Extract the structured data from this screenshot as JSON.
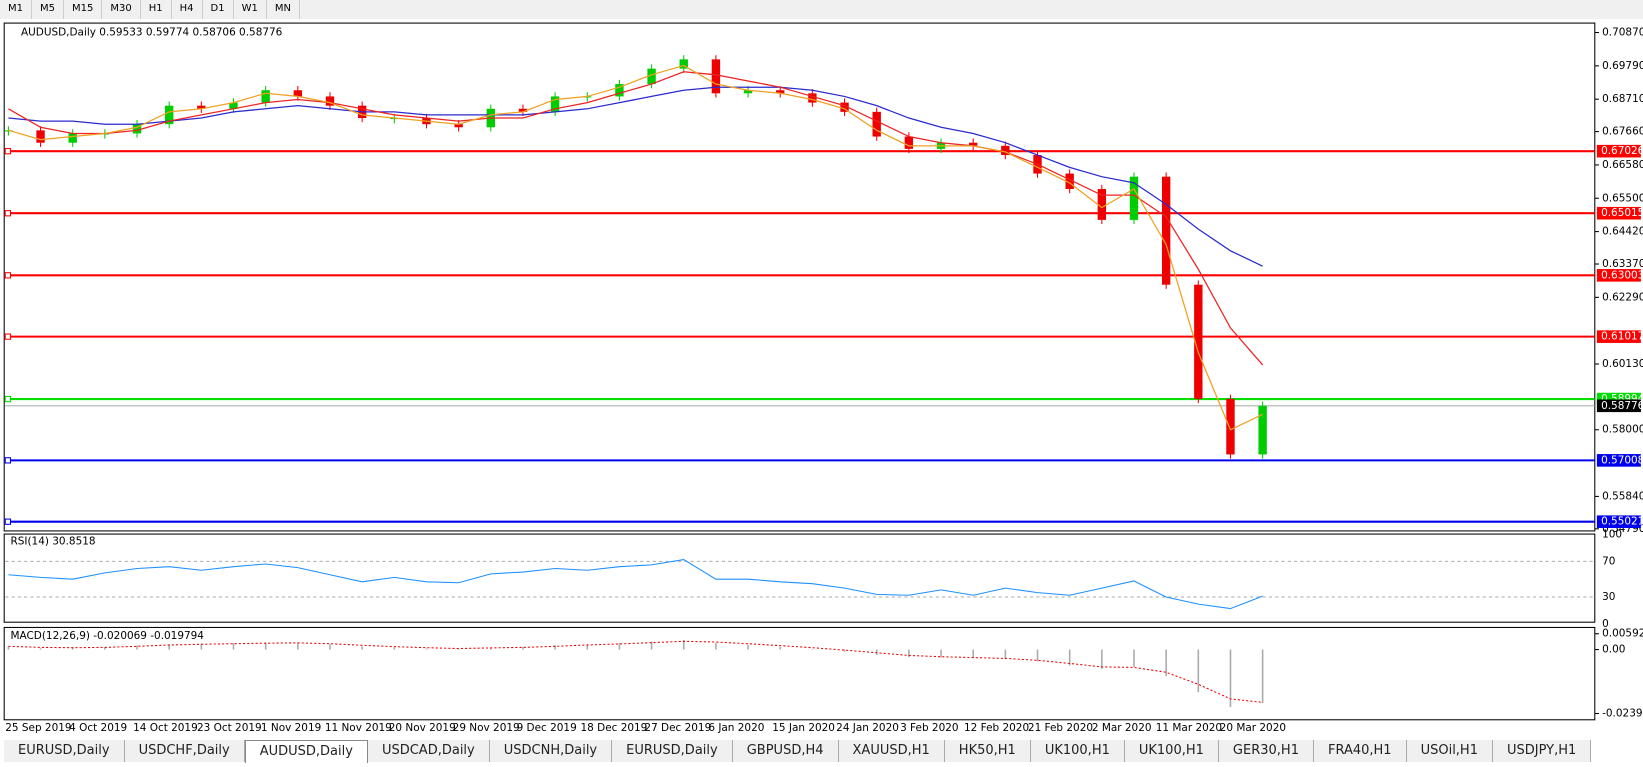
{
  "toolbar": [
    "M1",
    "M5",
    "M15",
    "M30",
    "H1",
    "H4",
    "D1",
    "W1",
    "MN"
  ],
  "chart": {
    "header": "AUDUSD,Daily  0.59533 0.59774 0.58706 0.58776",
    "ylim": [
      0.5479,
      0.7087
    ],
    "yticks": [
      {
        "value": 0.7087,
        "label": "0.70870"
      },
      {
        "value": 0.6979,
        "label": "0.69790"
      },
      {
        "value": 0.6871,
        "label": "0.68710"
      },
      {
        "value": 0.6766,
        "label": "0.67660"
      },
      {
        "value": 0.6658,
        "label": "0.66580"
      },
      {
        "value": 0.655,
        "label": "0.65500"
      },
      {
        "value": 0.6442,
        "label": "0.64420"
      },
      {
        "value": 0.6337,
        "label": "0.63370"
      },
      {
        "value": 0.6229,
        "label": "0.62290"
      },
      {
        "value": 0.6013,
        "label": "0.60130"
      },
      {
        "value": 0.58,
        "label": "0.58000"
      },
      {
        "value": 0.5584,
        "label": "0.55840"
      },
      {
        "value": 0.5479,
        "label": "0.54790"
      }
    ],
    "levels": [
      {
        "value": 0.67026,
        "color": "#ff0000"
      },
      {
        "value": 0.65015,
        "color": "#ff0000"
      },
      {
        "value": 0.63003,
        "color": "#ff0000"
      },
      {
        "value": 0.61017,
        "color": "#ff0000"
      },
      {
        "value": 0.58994,
        "color": "#00dd00"
      },
      {
        "value": 0.57008,
        "color": "#0000ee"
      },
      {
        "value": 0.55021,
        "color": "#0000ee"
      }
    ],
    "current_price": 0.58776,
    "closes": [
      0.677,
      0.673,
      0.676,
      0.676,
      0.679,
      0.685,
      0.684,
      0.686,
      0.69,
      0.688,
      0.685,
      0.681,
      0.681,
      0.679,
      0.678,
      0.684,
      0.683,
      0.688,
      0.688,
      0.692,
      0.697,
      0.7,
      0.689,
      0.69,
      0.689,
      0.686,
      0.683,
      0.675,
      0.671,
      0.673,
      0.672,
      0.669,
      0.663,
      0.658,
      0.648,
      0.662,
      0.627,
      0.59,
      0.572,
      0.58776
    ],
    "moving_averages": [
      {
        "color": "#2a2ad0",
        "values": [
          0.681,
          0.68,
          0.68,
          0.679,
          0.679,
          0.68,
          0.681,
          0.683,
          0.684,
          0.685,
          0.684,
          0.683,
          0.683,
          0.682,
          0.682,
          0.682,
          0.682,
          0.683,
          0.684,
          0.686,
          0.688,
          0.69,
          0.691,
          0.691,
          0.691,
          0.69,
          0.688,
          0.685,
          0.681,
          0.678,
          0.676,
          0.673,
          0.669,
          0.665,
          0.662,
          0.66,
          0.653,
          0.645,
          0.638,
          0.633
        ]
      },
      {
        "color": "#ee2222",
        "values": [
          0.684,
          0.678,
          0.676,
          0.676,
          0.677,
          0.68,
          0.682,
          0.684,
          0.686,
          0.687,
          0.686,
          0.684,
          0.682,
          0.681,
          0.68,
          0.681,
          0.681,
          0.684,
          0.686,
          0.689,
          0.692,
          0.696,
          0.695,
          0.693,
          0.691,
          0.688,
          0.685,
          0.68,
          0.675,
          0.673,
          0.672,
          0.67,
          0.666,
          0.661,
          0.656,
          0.656,
          0.649,
          0.632,
          0.613,
          0.601
        ]
      },
      {
        "color": "#f0a020",
        "values": [
          0.677,
          0.674,
          0.675,
          0.676,
          0.678,
          0.683,
          0.684,
          0.686,
          0.689,
          0.688,
          0.686,
          0.682,
          0.681,
          0.68,
          0.679,
          0.682,
          0.683,
          0.687,
          0.688,
          0.691,
          0.695,
          0.698,
          0.692,
          0.69,
          0.689,
          0.687,
          0.684,
          0.677,
          0.672,
          0.672,
          0.672,
          0.67,
          0.665,
          0.66,
          0.652,
          0.658,
          0.64,
          0.605,
          0.58,
          0.585
        ]
      }
    ],
    "dates": [
      "25 Sep 2019",
      "4 Oct 2019",
      "14 Oct 2019",
      "23 Oct 2019",
      "1 Nov 2019",
      "11 Nov 2019",
      "20 Nov 2019",
      "29 Nov 2019",
      "9 Dec 2019",
      "18 Dec 2019",
      "27 Dec 2019",
      "6 Jan 2020",
      "15 Jan 2020",
      "24 Jan 2020",
      "3 Feb 2020",
      "12 Feb 2020",
      "21 Feb 2020",
      "2 Mar 2020",
      "11 Mar 2020",
      "20 Mar 2020"
    ]
  },
  "rsi": {
    "label": "RSI(14) 30.8518",
    "ylim": [
      0,
      100
    ],
    "yticks": [
      100,
      70,
      30,
      0
    ],
    "values": [
      55,
      52,
      50,
      57,
      62,
      64,
      60,
      64,
      67,
      63,
      55,
      47,
      52,
      47,
      46,
      56,
      58,
      62,
      60,
      64,
      66,
      72,
      50,
      50,
      47,
      45,
      40,
      33,
      32,
      38,
      32,
      40,
      35,
      32,
      40,
      48,
      30,
      22,
      17,
      31
    ]
  },
  "macd": {
    "label": "MACD(12,26,9) -0.020069 -0.019794",
    "ylim": [
      -0.023944,
      0.005923
    ],
    "yticks": [
      0.005923,
      {
        "value": 0,
        "label": "0.00"
      },
      -0.023944
    ],
    "histogram": [
      0.001,
      0.0005,
      0.0008,
      0.001,
      0.0015,
      0.002,
      0.0022,
      0.0024,
      0.0026,
      0.0025,
      0.002,
      0.0012,
      0.0008,
      0.0004,
      0.0002,
      0.0008,
      0.001,
      0.0016,
      0.002,
      0.0024,
      0.003,
      0.0035,
      0.0025,
      0.0018,
      0.001,
      0.0002,
      -0.0008,
      -0.002,
      -0.0028,
      -0.003,
      -0.0032,
      -0.0036,
      -0.0045,
      -0.006,
      -0.0072,
      -0.0065,
      -0.01,
      -0.016,
      -0.0215,
      -0.020069
    ],
    "signal": [
      0.0012,
      0.0008,
      0.0007,
      0.0008,
      0.0012,
      0.0017,
      0.002,
      0.0022,
      0.0024,
      0.0025,
      0.0022,
      0.0016,
      0.0011,
      0.0007,
      0.0004,
      0.0006,
      0.0008,
      0.0012,
      0.0017,
      0.0021,
      0.0026,
      0.0031,
      0.0028,
      0.0022,
      0.0015,
      0.0007,
      -0.0002,
      -0.0012,
      -0.0022,
      -0.0027,
      -0.003,
      -0.0033,
      -0.004,
      -0.0052,
      -0.0065,
      -0.0067,
      -0.0085,
      -0.013,
      -0.0185,
      -0.019794
    ]
  },
  "tabs": [
    "EURUSD,Daily",
    "USDCHF,Daily",
    "AUDUSD,Daily",
    "USDCAD,Daily",
    "USDCNH,Daily",
    "EURUSD,Daily",
    "GBPUSD,H4",
    "XAUUSD,H1",
    "HK50,H1",
    "UK100,H1",
    "UK100,H1",
    "GER30,H1",
    "FRA40,H1",
    "USOil,H1",
    "USDJPY,H1"
  ],
  "active_tab": 2
}
